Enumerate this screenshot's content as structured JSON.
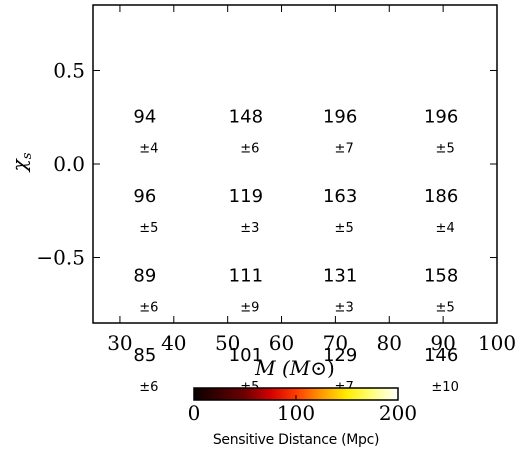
{
  "chart_data": {
    "type": "heatmap",
    "title": "",
    "xlabel": "M (M",
    "xlabel_unit_symbol": "⊙",
    "ylabel": "χ",
    "ylabel_sub": "s",
    "x_ticks": [
      "30",
      "40",
      "50",
      "60",
      "70",
      "80",
      "90",
      "100"
    ],
    "y_ticks": [
      "0.5",
      "0.0",
      "−0.5"
    ],
    "x_range": [
      25,
      100
    ],
    "y_range": [
      -0.85,
      0.85
    ],
    "x_categories": [
      [
        "25",
        "45"
      ],
      [
        "45",
        "62.5"
      ],
      [
        "62.5",
        "80"
      ],
      [
        "80",
        "100"
      ]
    ],
    "y_categories": [
      [
        "0.425",
        "0.85"
      ],
      [
        "0.0",
        "0.425"
      ],
      [
        "-0.425",
        "0.0"
      ],
      [
        "-0.85",
        "-0.425"
      ]
    ],
    "cells": [
      [
        {
          "value": 94,
          "err": "±4"
        },
        {
          "value": 148,
          "err": "±6"
        },
        {
          "value": 196,
          "err": "±7"
        },
        {
          "value": 196,
          "err": "±5"
        }
      ],
      [
        {
          "value": 96,
          "err": "±5"
        },
        {
          "value": 119,
          "err": "±3"
        },
        {
          "value": 163,
          "err": "±5"
        },
        {
          "value": 186,
          "err": "±4"
        }
      ],
      [
        {
          "value": 89,
          "err": "±6"
        },
        {
          "value": 111,
          "err": "±9"
        },
        {
          "value": 131,
          "err": "±3"
        },
        {
          "value": 158,
          "err": "±5"
        }
      ],
      [
        {
          "value": 85,
          "err": "±6"
        },
        {
          "value": 101,
          "err": "±5"
        },
        {
          "value": 129,
          "err": "±7"
        },
        {
          "value": 146,
          "err": "±10"
        }
      ]
    ],
    "colormap": "hot",
    "colorbar": {
      "range": [
        0,
        200
      ],
      "ticks": [
        "0",
        "100",
        "200"
      ],
      "label": "Sensitive Distance (Mpc)",
      "placement": "bottom"
    },
    "grid": false
  }
}
